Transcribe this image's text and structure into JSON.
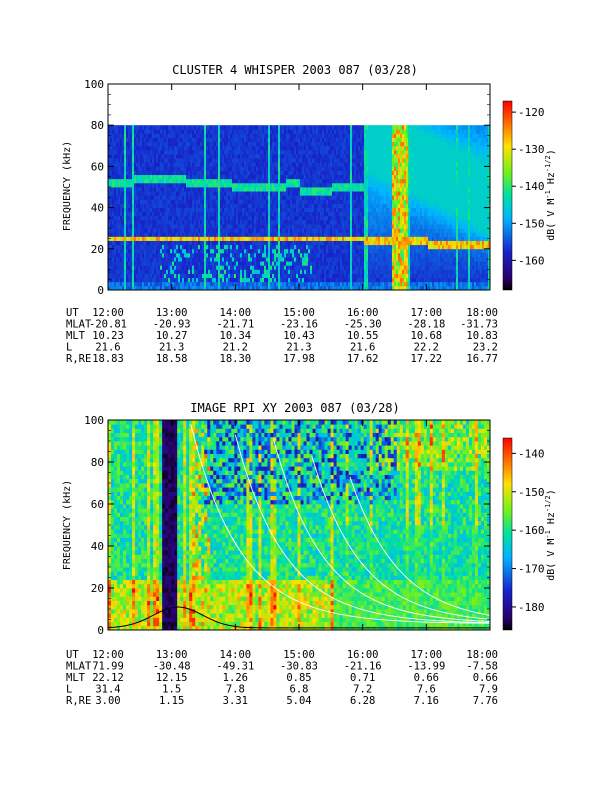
{
  "chart_data": [
    {
      "type": "heatmap",
      "title": "CLUSTER 4 WHISPER 2003 087 (03/28)",
      "ylabel": "FREQUENCY (kHz)",
      "x_ticks": [
        "12:00",
        "13:00",
        "14:00",
        "15:00",
        "16:00",
        "17:00",
        "18:00"
      ],
      "y_ticks": [
        "0",
        "20",
        "40",
        "60",
        "80",
        "100"
      ],
      "xlim": [
        "12:00",
        "18:00"
      ],
      "ylim": [
        0,
        100
      ],
      "data_frequency_max_khz": 80,
      "colorbar": {
        "label": "dB( V M⁻¹ Hz⁻¹ᐟ²)",
        "label_main": "dB( V M",
        "label_sup1": "-1",
        "label_mid": " Hz",
        "label_sup2": "-1/2",
        "label_end": ")",
        "ticks": [
          "-120",
          "-130",
          "-140",
          "-150",
          "-160"
        ],
        "range": [
          -168,
          -117
        ]
      },
      "features": {
        "band_upper_khz": 52,
        "band_lower_khz": 25,
        "band_lower_end_khz": 23
      },
      "ephemeris": {
        "rows": [
          {
            "label": "UT",
            "values": [
              "12:00",
              "13:00",
              "14:00",
              "15:00",
              "16:00",
              "17:00",
              "18:00"
            ]
          },
          {
            "label": "MLAT",
            "values": [
              "-20.81",
              "-20.93",
              "-21.71",
              "-23.16",
              "-25.30",
              "-28.18",
              "-31.73"
            ]
          },
          {
            "label": "MLT",
            "values": [
              "10.23",
              "10.27",
              "10.34",
              "10.43",
              "10.55",
              "10.68",
              "10.83"
            ]
          },
          {
            "label": "L",
            "values": [
              "21.6",
              "21.3",
              "21.2",
              "21.3",
              "21.6",
              "22.2",
              "23.2"
            ]
          },
          {
            "label": "R,RE",
            "values": [
              "18.83",
              "18.58",
              "18.30",
              "17.98",
              "17.62",
              "17.22",
              "16.77"
            ]
          }
        ]
      }
    },
    {
      "type": "heatmap",
      "title": "IMAGE RPI XY 2003 087 (03/28)",
      "ylabel": "FREQUENCY (kHz)",
      "x_ticks": [
        "12:00",
        "13:00",
        "14:00",
        "15:00",
        "16:00",
        "17:00",
        "18:00"
      ],
      "y_ticks": [
        "0",
        "20",
        "40",
        "60",
        "80",
        "100"
      ],
      "xlim": [
        "12:00",
        "18:00"
      ],
      "ylim": [
        0,
        100
      ],
      "colorbar": {
        "label_main": "dB( V M",
        "label_sup1": "-1",
        "label_mid": " Hz",
        "label_sup2": "-1/2",
        "label_end": ")",
        "ticks": [
          "-140",
          "-150",
          "-160",
          "-170",
          "-180"
        ],
        "range": [
          -186,
          -136
        ]
      },
      "ephemeris": {
        "rows": [
          {
            "label": "UT",
            "values": [
              "12:00",
              "13:00",
              "14:00",
              "15:00",
              "16:00",
              "17:00",
              "18:00"
            ]
          },
          {
            "label": "MLAT",
            "values": [
              "71.99",
              "-30.48",
              "-49.31",
              "-30.83",
              "-21.16",
              "-13.99",
              "-7.58"
            ]
          },
          {
            "label": "MLT",
            "values": [
              "22.12",
              "12.15",
              "1.26",
              "0.85",
              "0.71",
              "0.66",
              "0.66"
            ]
          },
          {
            "label": "L",
            "values": [
              "31.4",
              "1.5",
              "7.8",
              "6.8",
              "7.2",
              "7.6",
              "7.9"
            ]
          },
          {
            "label": "R,RE",
            "values": [
              "3.00",
              "1.15",
              "3.31",
              "5.04",
              "6.28",
              "7.16",
              "7.76"
            ]
          }
        ]
      }
    }
  ]
}
